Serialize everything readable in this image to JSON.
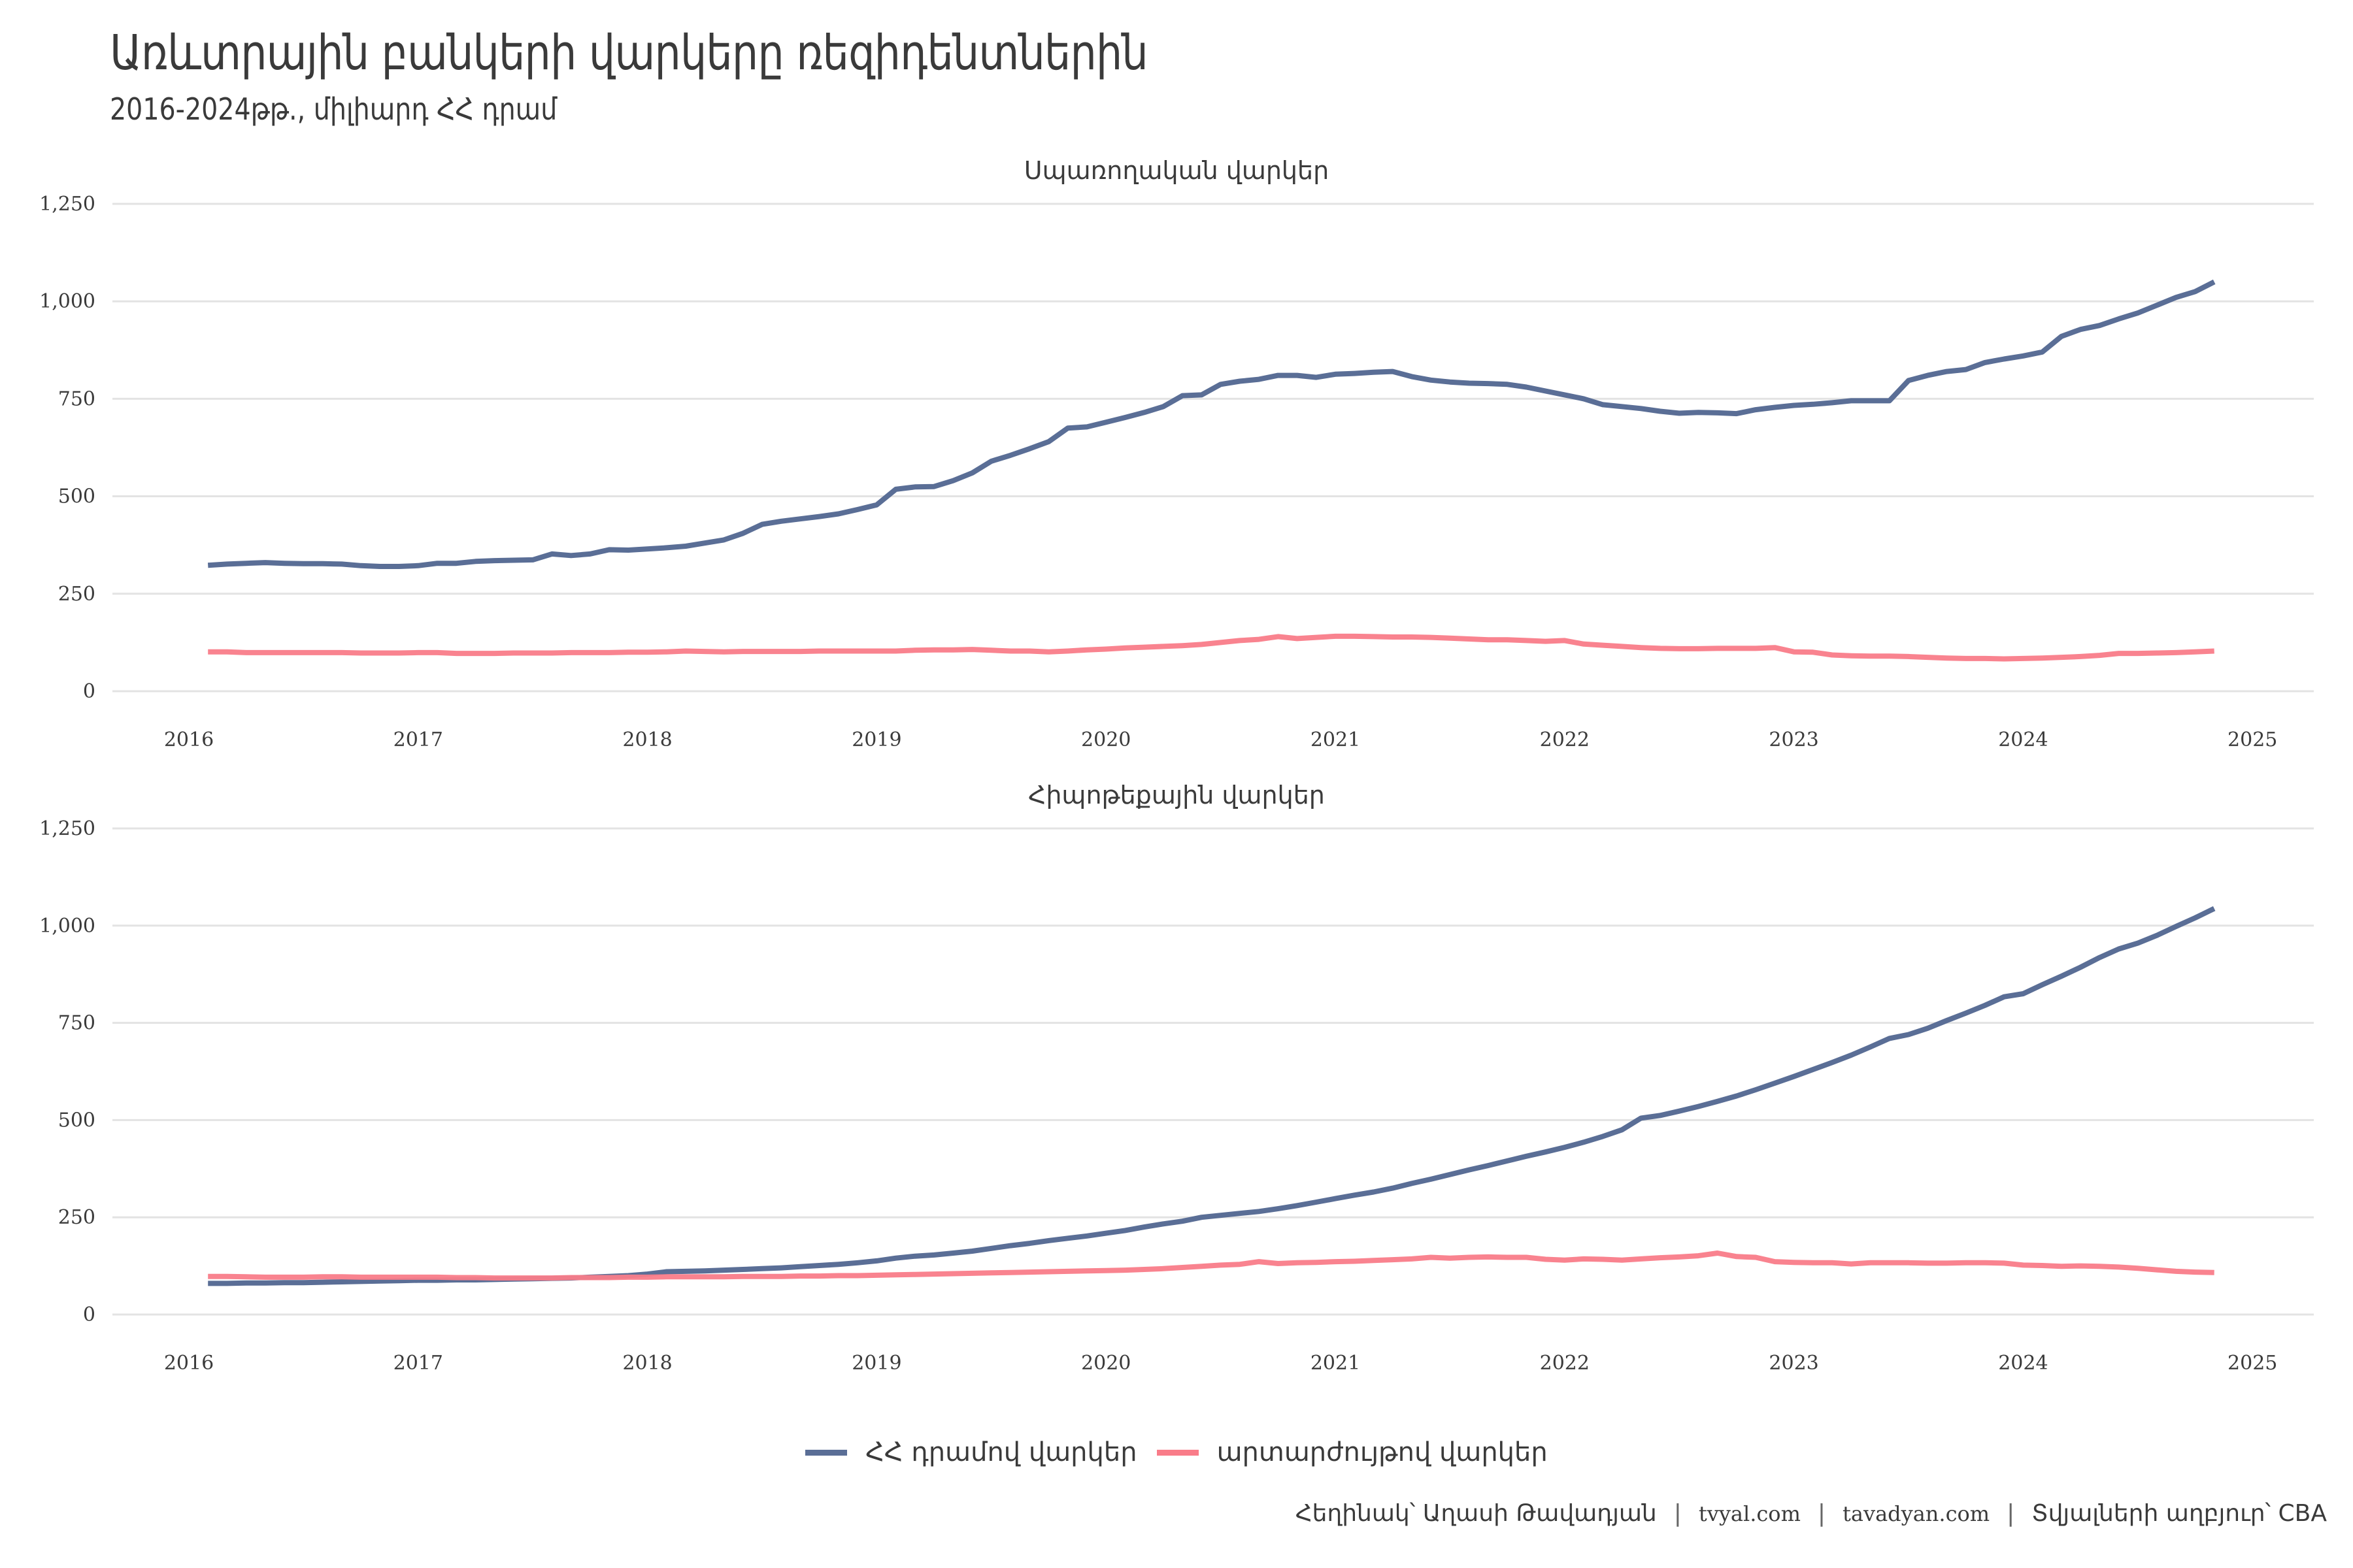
{
  "header": {
    "title": "Առևտրային բանկերի վարկերը ռեզիդենտներին",
    "subtitle": "2016-2024թթ., միլիարդ ՀՀ դրամ"
  },
  "legend": {
    "items": [
      {
        "label": "ՀՀ դրամով վարկեր",
        "color": "#5a6e96"
      },
      {
        "label": "արտարժույթով վարկեր",
        "color": "#f97c89"
      }
    ]
  },
  "footer": {
    "author": "Հեղինակ՝ Աղասի Թավադյան",
    "sep1": "|",
    "site1": "tvyal.com",
    "sep2": "|",
    "site2": "tavadyan.com",
    "sep3": "|",
    "source": "Տվյալների աղբյուր՝ CBA"
  },
  "chart_data": [
    {
      "type": "line",
      "title": "Սպառողական վարկեր",
      "xlabel": "",
      "ylabel": "",
      "ylim": [
        0,
        1250
      ],
      "xlim": [
        2016,
        2025
      ],
      "yticks": [
        0,
        250,
        500,
        750,
        1000,
        1250
      ],
      "ytick_labels": [
        "0",
        "250",
        "500",
        "750",
        "1,000",
        "1,250"
      ],
      "xticks": [
        "2016",
        "2017",
        "2018",
        "2019",
        "2020",
        "2021",
        "2022",
        "2023",
        "2024",
        "2025"
      ],
      "grid": true,
      "x_start": "2016-02",
      "x_step": "month",
      "series": [
        {
          "name": "ՀՀ դրամով վարկեր",
          "values": [
            323,
            326,
            328,
            330,
            328,
            327,
            327,
            326,
            322,
            320,
            320,
            322,
            328,
            328,
            333,
            335,
            336,
            337,
            352,
            348,
            352,
            363,
            362,
            365,
            368,
            372,
            380,
            388,
            405,
            428,
            436,
            442,
            448,
            455,
            466,
            478,
            518,
            524,
            525,
            540,
            560,
            590,
            605,
            622,
            640,
            675,
            678,
            690,
            702,
            715,
            730,
            758,
            760,
            787,
            795,
            800,
            810,
            810,
            805,
            813,
            815,
            818,
            820,
            807,
            798,
            793,
            790,
            789,
            787,
            780,
            770,
            760,
            750,
            735,
            730,
            725,
            718,
            713,
            715,
            714,
            712,
            722,
            728,
            733,
            736,
            740,
            745,
            745,
            745,
            797,
            810,
            820,
            825,
            843,
            852,
            860,
            870,
            910,
            928,
            938,
            955,
            970,
            990,
            1010,
            1025,
            1050
          ]
        },
        {
          "name": "արտարժույթով վարկեր",
          "values": [
            101,
            101,
            99,
            99,
            99,
            99,
            99,
            99,
            98,
            98,
            98,
            99,
            99,
            97,
            97,
            97,
            98,
            98,
            98,
            99,
            99,
            99,
            100,
            100,
            101,
            103,
            102,
            101,
            102,
            102,
            102,
            102,
            103,
            103,
            103,
            103,
            103,
            105,
            106,
            106,
            107,
            105,
            103,
            103,
            101,
            103,
            106,
            108,
            111,
            113,
            115,
            117,
            120,
            125,
            130,
            133,
            140,
            135,
            138,
            141,
            141,
            140,
            139,
            139,
            138,
            136,
            134,
            132,
            132,
            130,
            128,
            130,
            121,
            118,
            115,
            112,
            110,
            109,
            109,
            110,
            110,
            110,
            112,
            101,
            100,
            93,
            91,
            90,
            90,
            89,
            87,
            85,
            84,
            84,
            83,
            84,
            85,
            87,
            89,
            92,
            97,
            97,
            98,
            99,
            101,
            103
          ]
        }
      ]
    },
    {
      "type": "line",
      "title": "Հիպոթեքային վարկեր",
      "xlabel": "",
      "ylabel": "",
      "ylim": [
        0,
        1250
      ],
      "xlim": [
        2016,
        2025
      ],
      "yticks": [
        0,
        250,
        500,
        750,
        1000,
        1250
      ],
      "ytick_labels": [
        "0",
        "250",
        "500",
        "750",
        "1,000",
        "1,250"
      ],
      "xticks": [
        "2016",
        "2017",
        "2018",
        "2019",
        "2020",
        "2021",
        "2022",
        "2023",
        "2024",
        "2025"
      ],
      "grid": true,
      "x_start": "2016-02",
      "x_step": "month",
      "series": [
        {
          "name": "ՀՀ դրամով վարկեր",
          "values": [
            80,
            80,
            81,
            81,
            82,
            82,
            83,
            84,
            85,
            86,
            87,
            88,
            88,
            89,
            89,
            90,
            91,
            92,
            93,
            94,
            96,
            98,
            100,
            104,
            110,
            111,
            112,
            114,
            116,
            118,
            120,
            123,
            126,
            129,
            133,
            138,
            145,
            150,
            153,
            158,
            163,
            170,
            177,
            183,
            190,
            196,
            202,
            209,
            216,
            225,
            233,
            240,
            250,
            255,
            260,
            265,
            272,
            280,
            289,
            298,
            307,
            315,
            325,
            337,
            348,
            360,
            372,
            383,
            395,
            407,
            418,
            430,
            443,
            458,
            475,
            505,
            512,
            523,
            535,
            548,
            562,
            578,
            595,
            612,
            630,
            648,
            667,
            688,
            710,
            720,
            736,
            756,
            775,
            795,
            817,
            825,
            848,
            870,
            893,
            918,
            940,
            955,
            975,
            998,
            1020,
            1044
          ]
        },
        {
          "name": "արտարժույթով վարկեր",
          "values": [
            98,
            98,
            97,
            96,
            96,
            96,
            97,
            97,
            96,
            96,
            96,
            96,
            96,
            95,
            95,
            94,
            94,
            94,
            94,
            95,
            95,
            95,
            96,
            96,
            97,
            97,
            97,
            97,
            98,
            98,
            98,
            99,
            99,
            100,
            100,
            101,
            102,
            103,
            104,
            105,
            106,
            107,
            108,
            109,
            110,
            111,
            112,
            113,
            114,
            116,
            118,
            121,
            124,
            127,
            129,
            136,
            131,
            133,
            134,
            136,
            137,
            139,
            141,
            143,
            147,
            145,
            147,
            148,
            147,
            147,
            142,
            140,
            143,
            142,
            140,
            143,
            146,
            148,
            151,
            158,
            149,
            147,
            136,
            134,
            133,
            133,
            130,
            133,
            133,
            133,
            132,
            132,
            133,
            133,
            132,
            127,
            126,
            124,
            125,
            124,
            122,
            119,
            115,
            111,
            109,
            108
          ]
        }
      ]
    }
  ]
}
